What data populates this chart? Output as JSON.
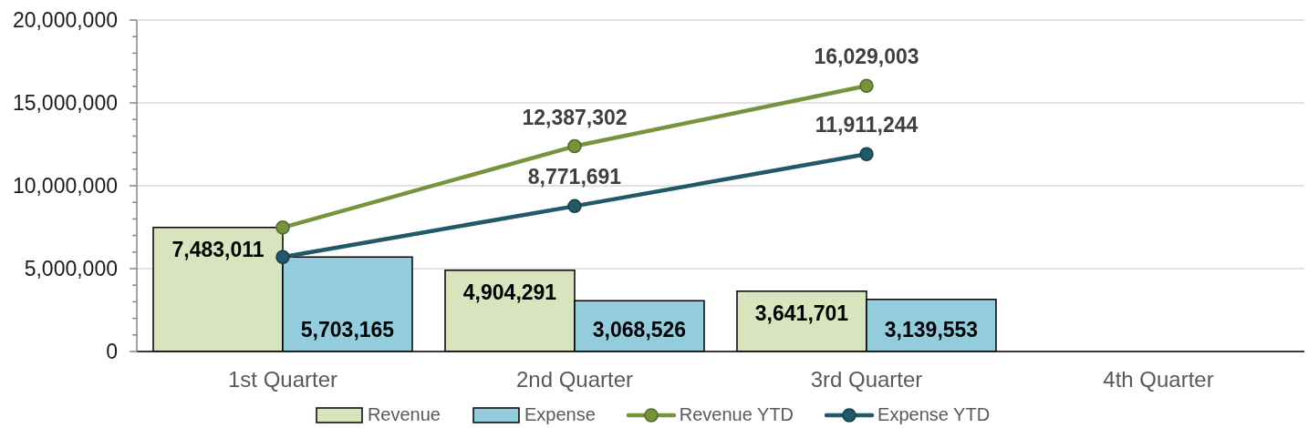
{
  "chart_data": {
    "type": "bar",
    "categories": [
      "1st Quarter",
      "2nd Quarter",
      "3rd Quarter",
      "4th Quarter"
    ],
    "series": [
      {
        "name": "Revenue",
        "color": "#d7e4bd",
        "values": [
          7483011,
          4904291,
          3641701,
          null
        ],
        "value_labels": [
          "7,483,011",
          "4,904,291",
          "3,641,701",
          null
        ]
      },
      {
        "name": "Expense",
        "color": "#93cddd",
        "values": [
          5703165,
          3068526,
          3139553,
          null
        ],
        "value_labels": [
          "5,703,165",
          "3,068,526",
          "3,139,553",
          null
        ]
      },
      {
        "name": "Revenue YTD",
        "type": "line",
        "color": "#77933c",
        "values": [
          7483011,
          12387302,
          16029003,
          null
        ],
        "value_labels": [
          null,
          "12,387,302",
          "16,029,003",
          null
        ]
      },
      {
        "name": "Expense YTD",
        "type": "line",
        "color": "#215968",
        "values": [
          5703165,
          8771691,
          11911244,
          null
        ],
        "value_labels": [
          null,
          "8,771,691",
          "11,911,244",
          null
        ]
      }
    ],
    "ylim": [
      0,
      20000000
    ],
    "yticks": [
      {
        "value": 0,
        "label": "0"
      },
      {
        "value": 1000000,
        "label": null
      },
      {
        "value": 2000000,
        "label": null
      },
      {
        "value": 3000000,
        "label": null
      },
      {
        "value": 4000000,
        "label": null
      },
      {
        "value": 5000000,
        "label": "5,000,000"
      },
      {
        "value": 6000000,
        "label": null
      },
      {
        "value": 7000000,
        "label": null
      },
      {
        "value": 8000000,
        "label": null
      },
      {
        "value": 9000000,
        "label": null
      },
      {
        "value": 10000000,
        "label": "10,000,000"
      },
      {
        "value": 11000000,
        "label": null
      },
      {
        "value": 12000000,
        "label": null
      },
      {
        "value": 13000000,
        "label": null
      },
      {
        "value": 14000000,
        "label": null
      },
      {
        "value": 15000000,
        "label": "15,000,000"
      },
      {
        "value": 16000000,
        "label": null
      },
      {
        "value": 17000000,
        "label": null
      },
      {
        "value": 18000000,
        "label": null
      },
      {
        "value": 19000000,
        "label": null
      },
      {
        "value": 20000000,
        "label": "20,000,000"
      }
    ],
    "grid": "y",
    "legend": "bottom",
    "marker": "circle",
    "line_style": "solid"
  }
}
